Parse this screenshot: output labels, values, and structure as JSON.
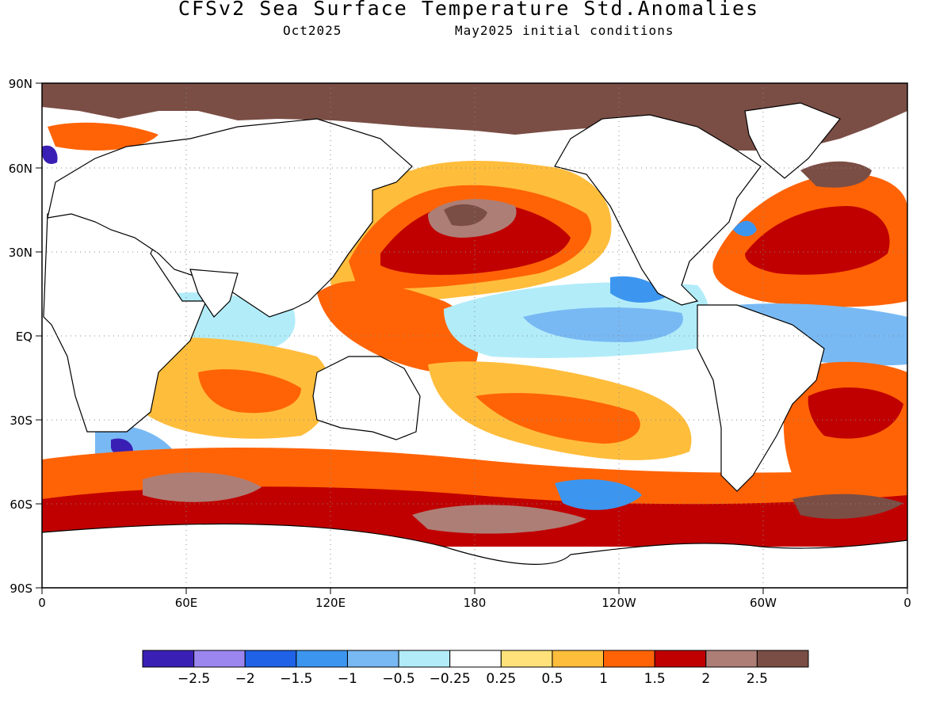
{
  "title": "CFSv2 Sea Surface Temperature Std.Anomalies",
  "subtitle_left": "Oct2025",
  "subtitle_right": "May2025 initial conditions",
  "map": {
    "lat_labels": [
      "90N",
      "60N",
      "30N",
      "EQ",
      "30S",
      "60S",
      "90S"
    ],
    "lon_labels": [
      "0",
      "60E",
      "120E",
      "180",
      "120W",
      "60W",
      "0"
    ],
    "land_color": "#ffffff",
    "ocean_default_color": "#ffffff"
  },
  "colorbar": {
    "colors": [
      "#3a1fb5",
      "#9b86f0",
      "#1f62e8",
      "#3c96f0",
      "#78b9f4",
      "#b2ecf9",
      "#ffffff",
      "#ffe27a",
      "#ffbd3c",
      "#ff6306",
      "#c00000",
      "#ad7e76",
      "#7a4e45"
    ],
    "labels": [
      "-2.5",
      "-2",
      "-1.5",
      "-1",
      "-0.5",
      "-0.25",
      "0.25",
      "0.5",
      "1",
      "1.5",
      "2",
      "2.5"
    ]
  }
}
